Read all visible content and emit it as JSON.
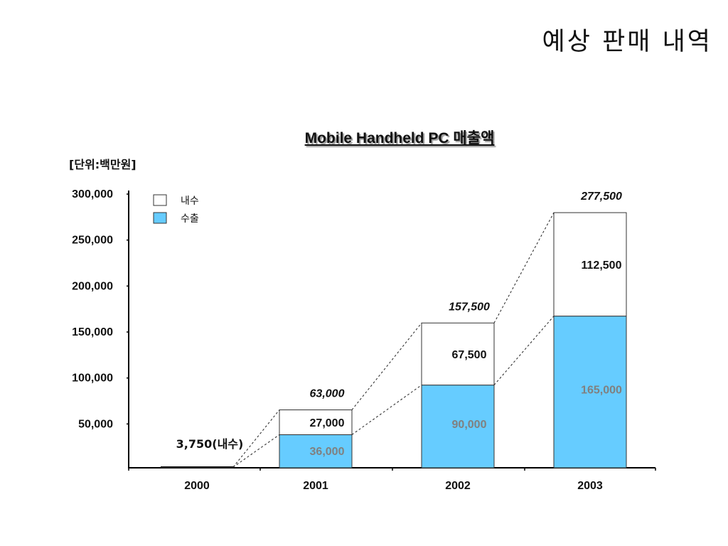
{
  "page": {
    "title": "예상 판매 내역"
  },
  "chart_data": {
    "type": "bar",
    "stacked": true,
    "title": "Mobile Handheld PC 매출액",
    "unit_label": "[단위:백만원]",
    "categories": [
      "2000",
      "2001",
      "2002",
      "2003"
    ],
    "series": [
      {
        "name": "수출",
        "color": "#66ccff",
        "values": [
          0,
          36000,
          90000,
          165000
        ],
        "labels": [
          "",
          "36,000",
          "90,000",
          "165,000"
        ],
        "label_color": "#808080"
      },
      {
        "name": "내수",
        "color": "#ffffff",
        "values": [
          3750,
          27000,
          67500,
          112500
        ],
        "labels": [
          "3,750(내수)",
          "27,000",
          "67,500",
          "112,500"
        ],
        "label_color": "#111111"
      }
    ],
    "totals": [
      3750,
      63000,
      157500,
      277500
    ],
    "total_labels": [
      "",
      "63,000",
      "157,500",
      "277,500"
    ],
    "y_ticks": [
      50000,
      100000,
      150000,
      200000,
      250000,
      300000
    ],
    "y_tick_labels": [
      "50,000",
      "100,000",
      "150,000",
      "200,000",
      "250,000",
      "300,000"
    ],
    "ylim": [
      0,
      300000
    ],
    "legend": [
      {
        "name": "내수",
        "color": "#ffffff"
      },
      {
        "name": "수출",
        "color": "#66ccff"
      }
    ],
    "legend_position": "top-left",
    "grid": false,
    "connector_lines": "dashed"
  }
}
